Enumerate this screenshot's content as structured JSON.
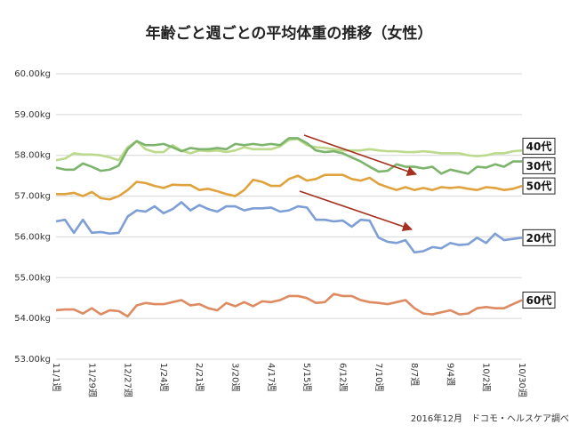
{
  "chart_data": {
    "type": "line",
    "title": "年齢ごと週ごとの平均体重の推移（女性）",
    "source": "2016年12月　ドコモ・ヘルスケア調べ",
    "categories": [
      "11/1週",
      null,
      null,
      null,
      "11/29週",
      null,
      null,
      null,
      "12/27週",
      null,
      null,
      null,
      "1/24週",
      null,
      null,
      null,
      "2/21週",
      null,
      null,
      null,
      "3/20週",
      null,
      null,
      null,
      "4/17週",
      null,
      null,
      null,
      "5/15週",
      null,
      null,
      null,
      "6/12週",
      null,
      null,
      null,
      "7/10週",
      null,
      null,
      null,
      "8/7週",
      null,
      null,
      null,
      "9/4週",
      null,
      null,
      null,
      "10/2週",
      null,
      null,
      null,
      "10/30週"
    ],
    "ylim": [
      53,
      60
    ],
    "yticks": [
      {
        "value": 53,
        "label": "53.00kg"
      },
      {
        "value": 54,
        "label": "54.00kg"
      },
      {
        "value": 55,
        "label": "55.00kg"
      },
      {
        "value": 56,
        "label": "56.00kg"
      },
      {
        "value": 57,
        "label": "57.00kg"
      },
      {
        "value": 58,
        "label": "58.00kg"
      },
      {
        "value": 59,
        "label": "59.00kg"
      },
      {
        "value": 60,
        "label": "60.00kg"
      }
    ],
    "grid": true,
    "series": [
      {
        "name": "40代",
        "color": "#bcd98c",
        "values": [
          57.88,
          57.92,
          58.05,
          58.02,
          58.02,
          58.0,
          57.95,
          57.88,
          58.2,
          58.35,
          58.15,
          58.08,
          58.08,
          58.25,
          58.12,
          58.05,
          58.12,
          58.1,
          58.12,
          58.08,
          58.12,
          58.2,
          58.15,
          58.15,
          58.15,
          58.22,
          58.38,
          58.4,
          58.25,
          58.2,
          58.18,
          58.15,
          58.12,
          58.12,
          58.12,
          58.15,
          58.12,
          58.1,
          58.1,
          58.08,
          58.08,
          58.1,
          58.08,
          58.05,
          58.05,
          58.05,
          58.0,
          57.98,
          58.0,
          58.05,
          58.05,
          58.1,
          58.12
        ]
      },
      {
        "name": "30代",
        "color": "#7db46c",
        "values": [
          57.7,
          57.65,
          57.65,
          57.8,
          57.72,
          57.62,
          57.65,
          57.75,
          58.15,
          58.35,
          58.25,
          58.25,
          58.28,
          58.2,
          58.1,
          58.18,
          58.15,
          58.15,
          58.18,
          58.15,
          58.28,
          58.25,
          58.28,
          58.25,
          58.28,
          58.25,
          58.42,
          58.42,
          58.3,
          58.12,
          58.08,
          58.1,
          58.05,
          57.95,
          57.85,
          57.72,
          57.6,
          57.62,
          57.78,
          57.72,
          57.72,
          57.68,
          57.72,
          57.55,
          57.65,
          57.6,
          57.55,
          57.72,
          57.7,
          57.78,
          57.72,
          57.85,
          57.85
        ]
      },
      {
        "name": "50代",
        "color": "#e0a23c",
        "values": [
          57.05,
          57.05,
          57.08,
          57.0,
          57.1,
          56.95,
          56.92,
          57.0,
          57.15,
          57.35,
          57.32,
          57.25,
          57.2,
          57.28,
          57.27,
          57.27,
          57.15,
          57.18,
          57.12,
          57.05,
          57.0,
          57.15,
          57.4,
          57.35,
          57.25,
          57.25,
          57.42,
          57.5,
          57.38,
          57.42,
          57.52,
          57.52,
          57.52,
          57.42,
          57.38,
          57.45,
          57.3,
          57.22,
          57.15,
          57.22,
          57.15,
          57.2,
          57.15,
          57.22,
          57.2,
          57.22,
          57.18,
          57.15,
          57.22,
          57.2,
          57.15,
          57.18,
          57.25
        ]
      },
      {
        "name": "20代",
        "color": "#7e9fd6",
        "values": [
          56.38,
          56.42,
          56.1,
          56.42,
          56.1,
          56.12,
          56.08,
          56.1,
          56.5,
          56.65,
          56.62,
          56.75,
          56.58,
          56.68,
          56.85,
          56.65,
          56.78,
          56.68,
          56.62,
          56.75,
          56.75,
          56.65,
          56.7,
          56.7,
          56.72,
          56.62,
          56.65,
          56.75,
          56.72,
          56.42,
          56.42,
          56.38,
          56.4,
          56.25,
          56.42,
          56.4,
          55.98,
          55.88,
          55.85,
          55.92,
          55.62,
          55.65,
          55.75,
          55.72,
          55.85,
          55.8,
          55.82,
          55.98,
          55.85,
          56.08,
          55.92,
          55.95,
          55.98
        ]
      },
      {
        "name": "60代",
        "color": "#de8b62",
        "values": [
          54.2,
          54.22,
          54.22,
          54.12,
          54.25,
          54.1,
          54.2,
          54.18,
          54.05,
          54.32,
          54.38,
          54.35,
          54.35,
          54.4,
          54.45,
          54.32,
          54.35,
          54.25,
          54.2,
          54.38,
          54.3,
          54.4,
          54.3,
          54.42,
          54.4,
          54.45,
          54.55,
          54.55,
          54.5,
          54.38,
          54.4,
          54.6,
          54.55,
          54.55,
          54.45,
          54.4,
          54.38,
          54.35,
          54.4,
          54.45,
          54.25,
          54.12,
          54.1,
          54.15,
          54.2,
          54.1,
          54.12,
          54.25,
          54.28,
          54.25,
          54.25,
          54.35,
          54.45
        ]
      }
    ]
  }
}
